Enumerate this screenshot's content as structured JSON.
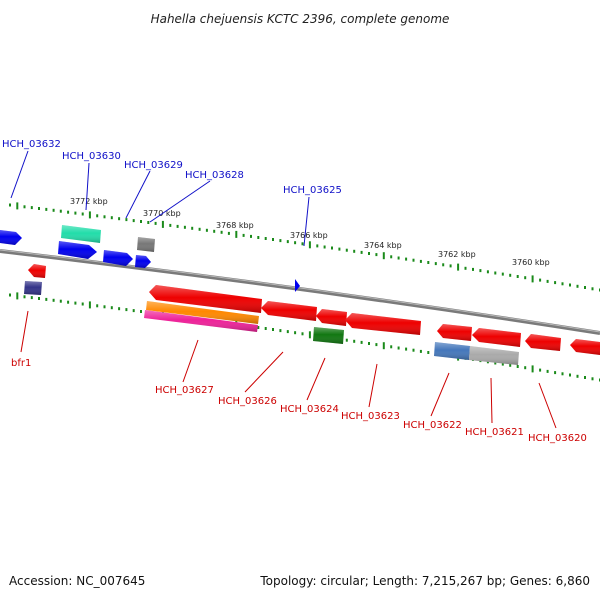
{
  "title": "Hahella chejuensis KCTC 2396, complete genome",
  "accession": "Accession: NC_007645",
  "topology": "Topology: circular; Length: 7,215,267 bp; Genes: 6,860",
  "scale_labels": [
    "3772 kbp",
    "3770 kbp",
    "3768 kbp",
    "3766 kbp",
    "3764 kbp",
    "3762 kbp",
    "3760 kbp"
  ],
  "colors": {
    "backbone": "#7a7a7a",
    "tick": "#1a8a1a",
    "top_label": "#1010c8",
    "bottom_label": "#cc0000",
    "gene_red": "#ee0000",
    "gene_blue": "#0000ee",
    "gene_teal": "#22ddaa",
    "gene_gray": "#777777",
    "gene_orange": "#ff8800",
    "gene_magenta": "#ee2299",
    "gene_green": "#117711",
    "gene_steelblue": "#4477bb",
    "gene_lightgray": "#aaaaaa",
    "gene_navy": "#333388"
  },
  "top_labels": [
    "HCH_03632",
    "HCH_03630",
    "HCH_03629",
    "HCH_03628",
    "HCH_03625"
  ],
  "bottom_labels": [
    "bfr1",
    "HCH_03627",
    "HCH_03626",
    "HCH_03624",
    "HCH_03623",
    "HCH_03622",
    "HCH_03621",
    "HCH_03620"
  ]
}
